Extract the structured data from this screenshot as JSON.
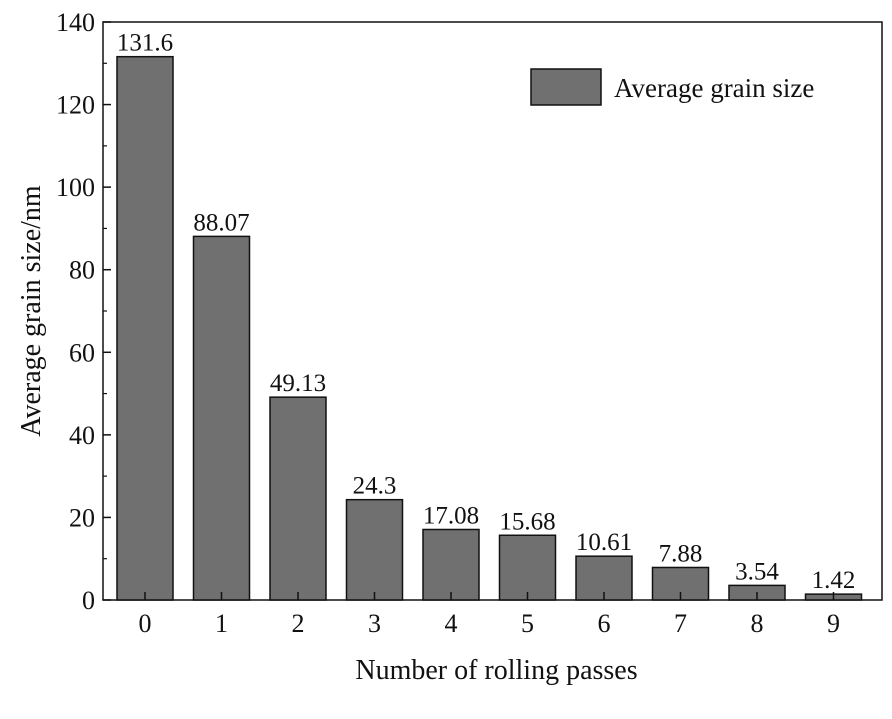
{
  "chart_data": {
    "type": "bar",
    "title": "",
    "xlabel": "Number of rolling passes",
    "ylabel": "Average grain size/nm",
    "categories": [
      "0",
      "1",
      "2",
      "3",
      "4",
      "5",
      "6",
      "7",
      "8",
      "9"
    ],
    "series": [
      {
        "name": "Average grain size",
        "values": [
          131.6,
          88.07,
          49.13,
          24.3,
          17.08,
          15.68,
          10.61,
          7.88,
          3.54,
          1.42
        ],
        "labels": [
          "131.6",
          "88.07",
          "49.13",
          "24.3",
          "17.08",
          "15.68",
          "10.61",
          "7.88",
          "3.54",
          "1.42"
        ],
        "color": "#707070"
      }
    ],
    "ylim": [
      0,
      140
    ],
    "yticks": [
      0,
      20,
      40,
      60,
      80,
      100,
      120,
      140
    ],
    "ytick_labels": [
      "0",
      "20",
      "40",
      "60",
      "80",
      "100",
      "120",
      "140"
    ],
    "grid": false,
    "legend": {
      "position": "top-right"
    },
    "colors": {
      "bar": "#707070",
      "bar_stroke": "#111111",
      "axis": "#111111"
    }
  }
}
